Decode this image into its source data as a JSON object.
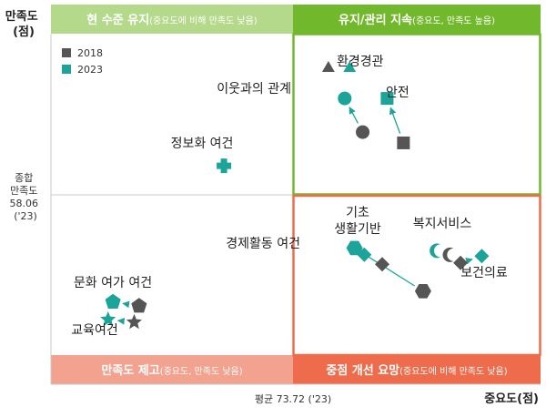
{
  "chart_data": {
    "type": "scatter",
    "quadrants": {
      "top_left": {
        "title": "현 수준 유지",
        "note": "(중요도에 비해 만족도 낮음)",
        "color": "#b5d98a"
      },
      "top_right": {
        "title": "유지/관리 지속",
        "note": "(중요도, 만족도 높음)",
        "color": "#72b82c"
      },
      "bottom_left": {
        "title": "만족도 제고",
        "note": "(중요도, 만족도 낮음)",
        "color": "#f2a28e"
      },
      "bottom_right": {
        "title": "중점 개선 요망",
        "note": "(중요도에 비해 만족도 낮음)",
        "color": "#ee6b4b"
      }
    },
    "y_axis_title": [
      "만족도",
      "(점)"
    ],
    "x_axis_title": "중요도(점)",
    "y_reference_label": [
      "종합",
      "만족도",
      "58.06",
      "('23)"
    ],
    "x_reference_label": "평균 73.72 ('23)",
    "reference": {
      "importance": 73.72,
      "satisfaction": 58.06
    },
    "axis_ranges": {
      "importance": [
        56,
        86
      ],
      "satisfaction": [
        44,
        70
      ]
    },
    "legend": {
      "position": "top-left",
      "items": [
        {
          "label": "2018",
          "color": "#555555"
        },
        {
          "label": "2023",
          "color": "#1ca39a"
        }
      ]
    },
    "colors": {
      "y2018": "#555555",
      "y2023": "#1ca39a",
      "arrow": "#1ca39a"
    },
    "items": [
      {
        "name": "환경경관",
        "shape": "triangle",
        "y2018": {
          "x": 73.0,
          "y": 67.5
        },
        "y2023": {
          "x": 74.3,
          "y": 67.5
        }
      },
      {
        "name": "안전",
        "shape": "square",
        "y2018": {
          "x": 77.6,
          "y": 61.9
        },
        "y2023": {
          "x": 76.6,
          "y": 65.2
        }
      },
      {
        "name": "이웃과의 관계",
        "shape": "circle",
        "y2018": {
          "x": 75.1,
          "y": 62.7
        },
        "y2023": {
          "x": 74.0,
          "y": 65.2
        }
      },
      {
        "name": "정보화 여건",
        "shape": "cross",
        "y2023": {
          "x": 66.6,
          "y": 60.2
        }
      },
      {
        "name": "경제활동 여건",
        "shape": "hexagon",
        "y2018": {
          "x": 78.8,
          "y": 50.9
        },
        "y2023": {
          "x": 74.6,
          "y": 54.1
        }
      },
      {
        "name": "기초\n생활기반",
        "shape": "diamond",
        "y2018": {
          "x": 76.3,
          "y": 52.9
        },
        "y2023": {
          "x": 75.2,
          "y": 53.6
        }
      },
      {
        "name": "복지서비스",
        "shape": "crescent",
        "y2018": {
          "x": 80.5,
          "y": 53.6
        },
        "y2023": {
          "x": 79.7,
          "y": 53.9
        }
      },
      {
        "name": "보건의료",
        "shape": "diamond",
        "y2018": {
          "x": 81.1,
          "y": 53.0
        },
        "y2023": {
          "x": 82.4,
          "y": 53.5
        }
      },
      {
        "name": "문화 여가 여건",
        "shape": "pentagon",
        "y2018": {
          "x": 61.4,
          "y": 49.8
        },
        "y2023": {
          "x": 59.8,
          "y": 50.1
        }
      },
      {
        "name": "교육여건",
        "shape": "star",
        "y2018": {
          "x": 61.1,
          "y": 48.6
        },
        "y2023": {
          "x": 59.5,
          "y": 48.8
        }
      }
    ]
  }
}
